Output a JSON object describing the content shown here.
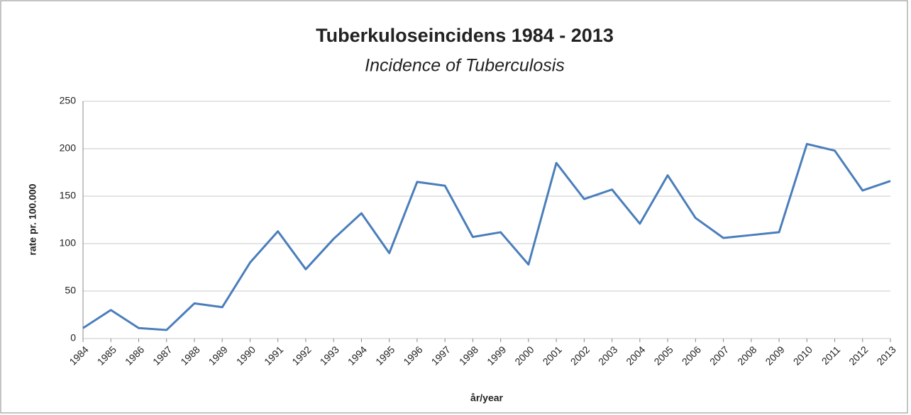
{
  "chart_data": {
    "type": "line",
    "title": "Tuberkuloseincidens 1984 - 2013",
    "subtitle": "Incidence of Tuberculosis",
    "x_label": "år/year",
    "y_label": "rate pr. 100.000",
    "categories": [
      "1984",
      "1985",
      "1986",
      "1987",
      "1988",
      "1989",
      "1990",
      "1991",
      "1992",
      "1993",
      "1994",
      "1995",
      "1996",
      "1997",
      "1998",
      "1999",
      "2000",
      "2001",
      "2002",
      "2003",
      "2004",
      "2005",
      "2006",
      "2007",
      "2008",
      "2009",
      "2010",
      "2011",
      "2012",
      "2013"
    ],
    "series": [
      {
        "name": "rate",
        "color": "#4a7ebb",
        "values": [
          11,
          30,
          11,
          9,
          37,
          33,
          80,
          113,
          73,
          105,
          132,
          90,
          165,
          161,
          107,
          112,
          78,
          185,
          147,
          157,
          121,
          172,
          127,
          106,
          109,
          112,
          205,
          198,
          156,
          166
        ]
      }
    ],
    "ylim": [
      0,
      250
    ],
    "yticks": [
      0,
      50,
      100,
      150,
      200,
      250
    ],
    "grid": true
  }
}
